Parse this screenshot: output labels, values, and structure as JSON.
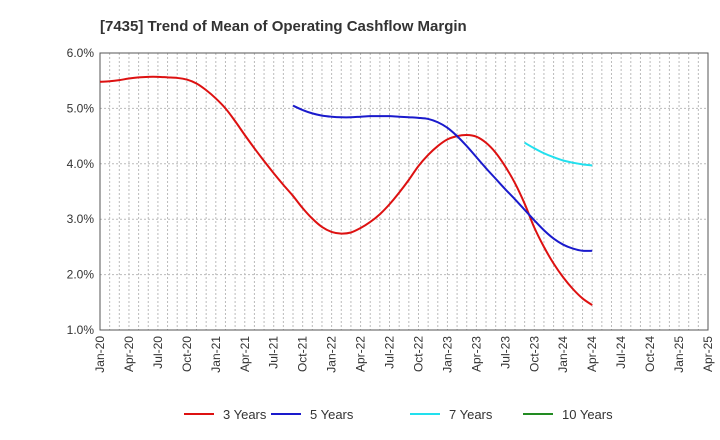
{
  "chart_data": {
    "type": "line",
    "title": "[7435]  Trend of Mean of Operating Cashflow Margin",
    "xlabel": "",
    "ylabel": "",
    "ylim": [
      1.0,
      6.0
    ],
    "y_ticks": [
      "1.0%",
      "2.0%",
      "3.0%",
      "4.0%",
      "5.0%",
      "6.0%"
    ],
    "x_tick_labels": [
      "Jan-20",
      "Apr-20",
      "Jul-20",
      "Oct-20",
      "Jan-21",
      "Apr-21",
      "Jul-21",
      "Oct-21",
      "Jan-22",
      "Apr-22",
      "Jul-22",
      "Oct-22",
      "Jan-23",
      "Apr-23",
      "Jul-23",
      "Oct-23",
      "Jan-24",
      "Apr-24",
      "Jul-24",
      "Oct-24",
      "Jan-25",
      "Apr-25"
    ],
    "grid": true,
    "legend_position": "bottom",
    "series": [
      {
        "name": "3 Years",
        "color": "#dd1111",
        "points": [
          [
            "Jan-20",
            5.48
          ],
          [
            "Feb-20",
            5.49
          ],
          [
            "Mar-20",
            5.51
          ],
          [
            "Apr-20",
            5.54
          ],
          [
            "May-20",
            5.56
          ],
          [
            "Jun-20",
            5.57
          ],
          [
            "Jul-20",
            5.57
          ],
          [
            "Aug-20",
            5.56
          ],
          [
            "Sep-20",
            5.55
          ],
          [
            "Oct-20",
            5.52
          ],
          [
            "Nov-20",
            5.45
          ],
          [
            "Dec-20",
            5.33
          ],
          [
            "Jan-21",
            5.18
          ],
          [
            "Feb-21",
            5.0
          ],
          [
            "Mar-21",
            4.77
          ],
          [
            "Apr-21",
            4.52
          ],
          [
            "May-21",
            4.28
          ],
          [
            "Jun-21",
            4.05
          ],
          [
            "Jul-21",
            3.83
          ],
          [
            "Aug-21",
            3.62
          ],
          [
            "Sep-21",
            3.42
          ],
          [
            "Oct-21",
            3.2
          ],
          [
            "Nov-21",
            3.01
          ],
          [
            "Dec-21",
            2.86
          ],
          [
            "Jan-22",
            2.77
          ],
          [
            "Feb-22",
            2.74
          ],
          [
            "Mar-22",
            2.76
          ],
          [
            "Apr-22",
            2.84
          ],
          [
            "May-22",
            2.95
          ],
          [
            "Jun-22",
            3.09
          ],
          [
            "Jul-22",
            3.27
          ],
          [
            "Aug-22",
            3.48
          ],
          [
            "Sep-22",
            3.71
          ],
          [
            "Oct-22",
            3.96
          ],
          [
            "Nov-22",
            4.16
          ],
          [
            "Dec-22",
            4.32
          ],
          [
            "Jan-23",
            4.44
          ],
          [
            "Feb-23",
            4.5
          ],
          [
            "Mar-23",
            4.52
          ],
          [
            "Apr-23",
            4.49
          ],
          [
            "May-23",
            4.38
          ],
          [
            "Jun-23",
            4.2
          ],
          [
            "Jul-23",
            3.95
          ],
          [
            "Aug-23",
            3.65
          ],
          [
            "Sep-23",
            3.28
          ],
          [
            "Oct-23",
            2.85
          ],
          [
            "Nov-23",
            2.5
          ],
          [
            "Dec-23",
            2.2
          ],
          [
            "Jan-24",
            1.95
          ],
          [
            "Feb-24",
            1.74
          ],
          [
            "Mar-24",
            1.57
          ],
          [
            "Apr-24",
            1.45
          ]
        ]
      },
      {
        "name": "5 Years",
        "color": "#1a1acc",
        "points": [
          [
            "Sep-21",
            5.05
          ],
          [
            "Oct-21",
            4.97
          ],
          [
            "Nov-21",
            4.91
          ],
          [
            "Dec-21",
            4.87
          ],
          [
            "Jan-22",
            4.85
          ],
          [
            "Feb-22",
            4.84
          ],
          [
            "Mar-22",
            4.84
          ],
          [
            "Apr-22",
            4.85
          ],
          [
            "May-22",
            4.86
          ],
          [
            "Jun-22",
            4.86
          ],
          [
            "Jul-22",
            4.86
          ],
          [
            "Aug-22",
            4.85
          ],
          [
            "Sep-22",
            4.84
          ],
          [
            "Oct-22",
            4.83
          ],
          [
            "Nov-22",
            4.81
          ],
          [
            "Dec-22",
            4.75
          ],
          [
            "Jan-23",
            4.65
          ],
          [
            "Feb-23",
            4.5
          ],
          [
            "Mar-23",
            4.32
          ],
          [
            "Apr-23",
            4.12
          ],
          [
            "May-23",
            3.92
          ],
          [
            "Jun-23",
            3.73
          ],
          [
            "Jul-23",
            3.54
          ],
          [
            "Aug-23",
            3.36
          ],
          [
            "Sep-23",
            3.17
          ],
          [
            "Oct-23",
            2.98
          ],
          [
            "Nov-23",
            2.8
          ],
          [
            "Dec-23",
            2.65
          ],
          [
            "Jan-24",
            2.54
          ],
          [
            "Feb-24",
            2.47
          ],
          [
            "Mar-24",
            2.43
          ],
          [
            "Apr-24",
            2.43
          ]
        ]
      },
      {
        "name": "7 Years",
        "color": "#22e0ee",
        "points": [
          [
            "Sep-23",
            4.38
          ],
          [
            "Oct-23",
            4.28
          ],
          [
            "Nov-23",
            4.19
          ],
          [
            "Dec-23",
            4.12
          ],
          [
            "Jan-24",
            4.06
          ],
          [
            "Feb-24",
            4.02
          ],
          [
            "Mar-24",
            3.99
          ],
          [
            "Apr-24",
            3.97
          ]
        ]
      },
      {
        "name": "10 Years",
        "color": "#228b22",
        "points": []
      }
    ]
  }
}
